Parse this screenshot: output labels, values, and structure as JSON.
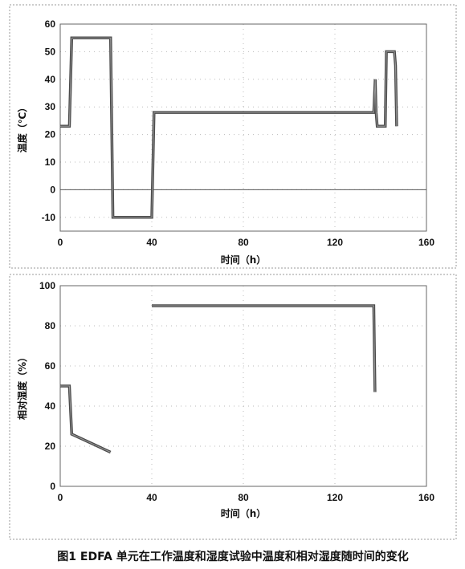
{
  "chart_data": [
    {
      "type": "line",
      "xlabel": "时间（h）",
      "ylabel": "温度（℃）",
      "xlim": [
        0,
        160
      ],
      "ylim": [
        -15,
        60
      ],
      "xticks": [
        0,
        40,
        80,
        120,
        160
      ],
      "yticks": [
        -10,
        0,
        10,
        20,
        30,
        40,
        50,
        60
      ],
      "zero_line": true,
      "grid": "dotted",
      "series": [
        {
          "x": [
            0,
            4,
            5,
            22,
            23,
            40,
            41,
            136,
            137,
            137.6,
            138,
            138.5,
            142,
            142.5,
            143,
            146,
            146.5,
            147
          ],
          "y": [
            23,
            23,
            55,
            55,
            -10,
            -10,
            28,
            28,
            28,
            40,
            28,
            23,
            23,
            50,
            50,
            50,
            45,
            23
          ]
        }
      ]
    },
    {
      "type": "line",
      "xlabel": "时间（h）",
      "ylabel": "相对湿度（%）",
      "xlim": [
        0,
        160
      ],
      "ylim": [
        0,
        100
      ],
      "xticks": [
        0,
        40,
        80,
        120,
        160
      ],
      "yticks": [
        0,
        20,
        40,
        60,
        80,
        100
      ],
      "grid": "dotted",
      "series": [
        {
          "x": [
            0,
            4,
            5,
            22
          ],
          "y": [
            50,
            50,
            26,
            17
          ]
        },
        {
          "x": [
            40,
            137,
            137.5
          ],
          "y": [
            90,
            90,
            47
          ]
        }
      ]
    }
  ],
  "caption": "图1   EDFA 单元在工作温度和湿度试验中温度和相对湿度随时间的变化"
}
